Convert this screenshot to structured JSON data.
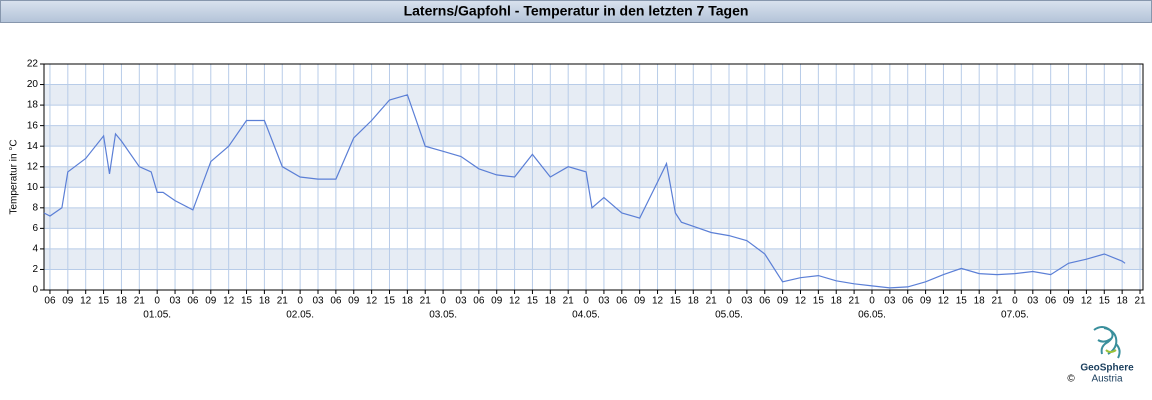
{
  "chart_data": {
    "type": "line",
    "title": "Laterns/Gapfohl - Temperatur in den letzten 7 Tagen",
    "ylabel": "Temperatur in °C",
    "brand": [
      "GeoSphere",
      "Austria"
    ],
    "copyright": "©",
    "series": [
      {
        "name": "Temperatur",
        "color": "#5b7fd6",
        "x": [
          5,
          6,
          8,
          9,
          12,
          15,
          16,
          17,
          18,
          21,
          23,
          24,
          25,
          27,
          30,
          33,
          36,
          39,
          42,
          45,
          48,
          51,
          54,
          57,
          60,
          63,
          66,
          69,
          72,
          75,
          78,
          81,
          84,
          87,
          90,
          93,
          96,
          97,
          99,
          102,
          105,
          108,
          109.5,
          111,
          112,
          114,
          117,
          120,
          123,
          126,
          129,
          132,
          135,
          138,
          141,
          144,
          147,
          150,
          153,
          156,
          159,
          162,
          165,
          168,
          171,
          174,
          177,
          180,
          183,
          186,
          186.5
        ],
        "values": [
          7.5,
          7.2,
          8,
          11.5,
          12.8,
          15,
          11.3,
          15.2,
          14.5,
          12,
          11.5,
          9.5,
          9.5,
          8.7,
          7.8,
          12.5,
          14,
          16.5,
          16.5,
          12,
          11,
          10.8,
          10.8,
          14.8,
          16.5,
          18.5,
          19,
          14,
          13.5,
          13,
          11.8,
          11.2,
          11,
          13.2,
          11,
          12,
          11.5,
          8,
          9,
          7.5,
          7,
          10.5,
          12.3,
          7.5,
          6.6,
          6.2,
          5.6,
          5.3,
          4.8,
          3.5,
          0.8,
          1.2,
          1.4,
          0.9,
          0.6,
          0.4,
          0.2,
          0.3,
          0.8,
          1.5,
          2.1,
          1.6,
          1.5,
          1.6,
          1.8,
          1.5,
          2.6,
          3,
          3.5,
          2.8,
          2.6
        ]
      }
    ],
    "xlim": [
      5,
      189.5
    ],
    "xticks": [
      {
        "value": 6,
        "label": "06"
      },
      {
        "value": 9,
        "label": "09"
      },
      {
        "value": 12,
        "label": "12"
      },
      {
        "value": 15,
        "label": "15"
      },
      {
        "value": 18,
        "label": "18"
      },
      {
        "value": 21,
        "label": "21"
      },
      {
        "value": 24,
        "label": "0"
      },
      {
        "value": 27,
        "label": "03"
      },
      {
        "value": 30,
        "label": "06"
      },
      {
        "value": 33,
        "label": "09"
      },
      {
        "value": 36,
        "label": "12"
      },
      {
        "value": 39,
        "label": "15"
      },
      {
        "value": 42,
        "label": "18"
      },
      {
        "value": 45,
        "label": "21"
      },
      {
        "value": 48,
        "label": "0"
      },
      {
        "value": 51,
        "label": "03"
      },
      {
        "value": 54,
        "label": "06"
      },
      {
        "value": 57,
        "label": "09"
      },
      {
        "value": 60,
        "label": "12"
      },
      {
        "value": 63,
        "label": "15"
      },
      {
        "value": 66,
        "label": "18"
      },
      {
        "value": 69,
        "label": "21"
      },
      {
        "value": 72,
        "label": "0"
      },
      {
        "value": 75,
        "label": "03"
      },
      {
        "value": 78,
        "label": "06"
      },
      {
        "value": 81,
        "label": "09"
      },
      {
        "value": 84,
        "label": "12"
      },
      {
        "value": 87,
        "label": "15"
      },
      {
        "value": 90,
        "label": "18"
      },
      {
        "value": 93,
        "label": "21"
      },
      {
        "value": 96,
        "label": "0"
      },
      {
        "value": 99,
        "label": "03"
      },
      {
        "value": 102,
        "label": "06"
      },
      {
        "value": 105,
        "label": "09"
      },
      {
        "value": 108,
        "label": "12"
      },
      {
        "value": 111,
        "label": "15"
      },
      {
        "value": 114,
        "label": "18"
      },
      {
        "value": 117,
        "label": "21"
      },
      {
        "value": 120,
        "label": "0"
      },
      {
        "value": 123,
        "label": "03"
      },
      {
        "value": 126,
        "label": "06"
      },
      {
        "value": 129,
        "label": "09"
      },
      {
        "value": 132,
        "label": "12"
      },
      {
        "value": 135,
        "label": "15"
      },
      {
        "value": 138,
        "label": "18"
      },
      {
        "value": 141,
        "label": "21"
      },
      {
        "value": 144,
        "label": "0"
      },
      {
        "value": 147,
        "label": "03"
      },
      {
        "value": 150,
        "label": "06"
      },
      {
        "value": 153,
        "label": "09"
      },
      {
        "value": 156,
        "label": "12"
      },
      {
        "value": 159,
        "label": "15"
      },
      {
        "value": 162,
        "label": "18"
      },
      {
        "value": 165,
        "label": "21"
      },
      {
        "value": 168,
        "label": "0"
      },
      {
        "value": 171,
        "label": "03"
      },
      {
        "value": 174,
        "label": "06"
      },
      {
        "value": 177,
        "label": "09"
      },
      {
        "value": 180,
        "label": "12"
      },
      {
        "value": 183,
        "label": "15"
      },
      {
        "value": 186,
        "label": "18"
      },
      {
        "value": 189,
        "label": "21"
      }
    ],
    "day_labels": [
      {
        "value": 24,
        "label": "01.05."
      },
      {
        "value": 48,
        "label": "02.05."
      },
      {
        "value": 72,
        "label": "03.05."
      },
      {
        "value": 96,
        "label": "04.05."
      },
      {
        "value": 120,
        "label": "05.05."
      },
      {
        "value": 144,
        "label": "06.05."
      },
      {
        "value": 168,
        "label": "07.05."
      }
    ],
    "ylim": [
      0,
      22
    ],
    "yticks": [
      0,
      2,
      4,
      6,
      8,
      10,
      12,
      14,
      16,
      18,
      20,
      22
    ],
    "grid": true
  }
}
